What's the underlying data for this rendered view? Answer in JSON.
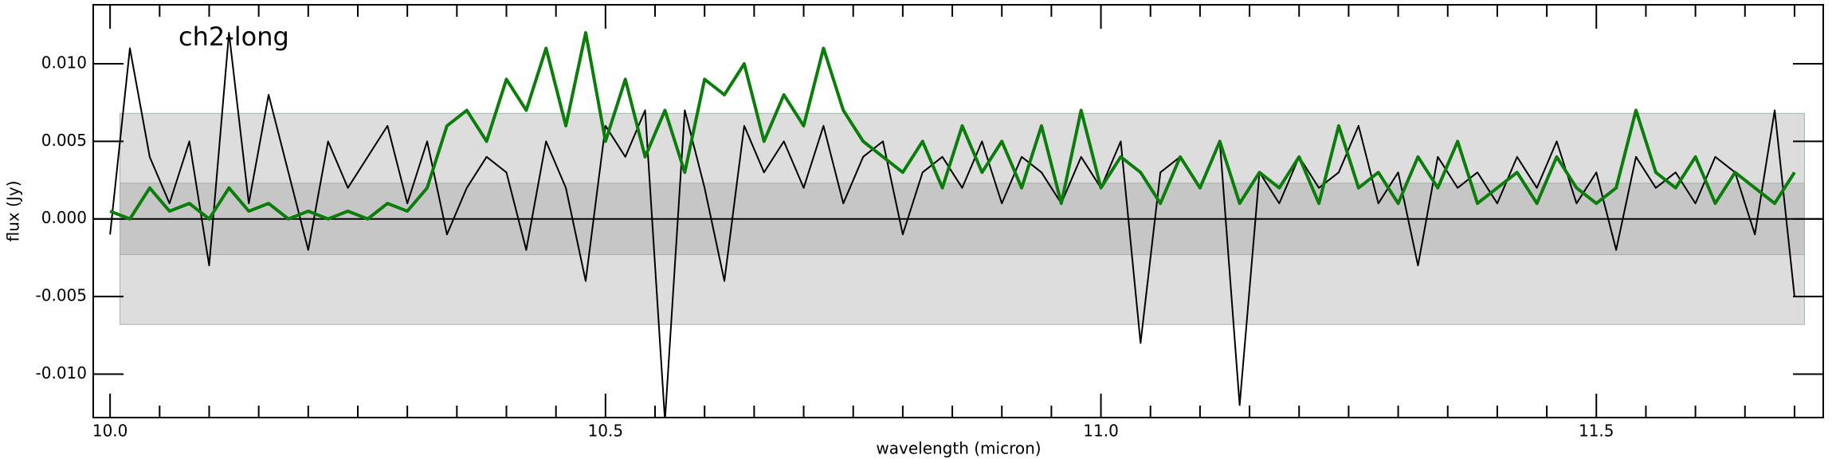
{
  "chart_data": {
    "type": "line",
    "annotation": "ch2-long",
    "xlabel": "wavelength (micron)",
    "ylabel": "flux (Jy)",
    "xlim": [
      9.983,
      11.729
    ],
    "ylim": [
      -0.0128,
      0.0138
    ],
    "xticks": [
      {
        "value": 10,
        "label": "10.0"
      },
      10.5,
      {
        "value": 11,
        "label": "11.0"
      },
      11.5
    ],
    "xminorticks": [
      10.05,
      10.1,
      10.15,
      10.2,
      10.25,
      10.3,
      10.35,
      10.4,
      10.45,
      10.55,
      10.6,
      10.65,
      10.7,
      10.75,
      10.8,
      10.85,
      10.9,
      10.95,
      11.05,
      11.1,
      11.15,
      11.2,
      11.25,
      11.3,
      11.35,
      11.4,
      11.45,
      11.55,
      11.6,
      11.65,
      11.7
    ],
    "yticks": [
      {
        "value": -0.01,
        "label": "-0.010"
      },
      {
        "value": -0.005,
        "label": "-0.005"
      },
      {
        "value": 0,
        "label": "0.000"
      },
      {
        "value": 0.005,
        "label": "0.005"
      },
      {
        "value": 0.01,
        "label": "0.010"
      }
    ],
    "bands": [
      {
        "xrange": [
          10.01,
          11.71
        ],
        "yrange": [
          -0.0068,
          0.0068
        ],
        "color": "#dddddd"
      },
      {
        "xrange": [
          10.01,
          11.71
        ],
        "yrange": [
          -0.0023,
          0.0023
        ],
        "color": "#c6c6c6"
      }
    ],
    "hlines": [
      0
    ],
    "x": [
      10.0,
      10.02,
      10.04,
      10.06,
      10.08,
      10.1,
      10.12,
      10.14,
      10.16,
      10.18,
      10.2,
      10.22,
      10.24,
      10.26,
      10.28,
      10.3,
      10.32,
      10.34,
      10.36,
      10.38,
      10.4,
      10.42,
      10.44,
      10.46,
      10.48,
      10.5,
      10.52,
      10.54,
      10.56,
      10.58,
      10.6,
      10.62,
      10.64,
      10.66,
      10.68,
      10.7,
      10.72,
      10.74,
      10.76,
      10.78,
      10.8,
      10.82,
      10.84,
      10.86,
      10.88,
      10.9,
      10.92,
      10.94,
      10.96,
      10.98,
      11.0,
      11.02,
      11.04,
      11.06,
      11.08,
      11.1,
      11.12,
      11.14,
      11.16,
      11.18,
      11.2,
      11.22,
      11.24,
      11.26,
      11.28,
      11.3,
      11.32,
      11.34,
      11.36,
      11.38,
      11.4,
      11.42,
      11.44,
      11.46,
      11.48,
      11.5,
      11.52,
      11.54,
      11.56,
      11.58,
      11.6,
      11.62,
      11.64,
      11.66,
      11.68,
      11.7
    ],
    "series": [
      {
        "color": "#000000",
        "width": 2,
        "values": [
          -0.001,
          0.011,
          0.004,
          0.001,
          0.005,
          -0.003,
          0.012,
          0.001,
          0.008,
          0.003,
          -0.002,
          0.005,
          0.002,
          0.004,
          0.006,
          0.001,
          0.005,
          -0.001,
          0.002,
          0.004,
          0.003,
          -0.002,
          0.005,
          0.002,
          -0.004,
          0.006,
          0.004,
          0.007,
          -0.013,
          0.007,
          0.002,
          -0.004,
          0.006,
          0.003,
          0.005,
          0.002,
          0.006,
          0.001,
          0.004,
          0.005,
          -0.001,
          0.003,
          0.004,
          0.002,
          0.005,
          0.001,
          0.004,
          0.003,
          0.001,
          0.004,
          0.002,
          0.005,
          -0.008,
          0.003,
          0.004,
          0.002,
          0.005,
          -0.012,
          0.003,
          0.001,
          0.004,
          0.002,
          0.003,
          0.006,
          0.001,
          0.003,
          -0.003,
          0.004,
          0.002,
          0.003,
          0.001,
          0.004,
          0.002,
          0.005,
          0.001,
          0.003,
          -0.002,
          0.004,
          0.002,
          0.003,
          0.001,
          0.004,
          0.003,
          -0.001,
          0.007,
          -0.005
        ]
      },
      {
        "color": "#0a7d0a",
        "width": 4,
        "values": [
          0.0005,
          0.0,
          0.002,
          0.0005,
          0.001,
          0.0,
          0.002,
          0.0005,
          0.001,
          0.0,
          0.0005,
          0.0,
          0.0005,
          0.0,
          0.001,
          0.0005,
          0.002,
          0.006,
          0.007,
          0.005,
          0.009,
          0.007,
          0.011,
          0.006,
          0.012,
          0.005,
          0.009,
          0.004,
          0.007,
          0.003,
          0.009,
          0.008,
          0.01,
          0.005,
          0.008,
          0.006,
          0.011,
          0.007,
          0.005,
          0.004,
          0.003,
          0.005,
          0.002,
          0.006,
          0.003,
          0.005,
          0.002,
          0.006,
          0.001,
          0.007,
          0.002,
          0.004,
          0.003,
          0.001,
          0.004,
          0.002,
          0.005,
          0.001,
          0.003,
          0.002,
          0.004,
          0.001,
          0.006,
          0.002,
          0.003,
          0.001,
          0.004,
          0.002,
          0.005,
          0.001,
          0.002,
          0.003,
          0.001,
          0.004,
          0.002,
          0.001,
          0.002,
          0.007,
          0.003,
          0.002,
          0.004,
          0.001,
          0.003,
          0.002,
          0.001,
          0.003
        ]
      }
    ]
  }
}
